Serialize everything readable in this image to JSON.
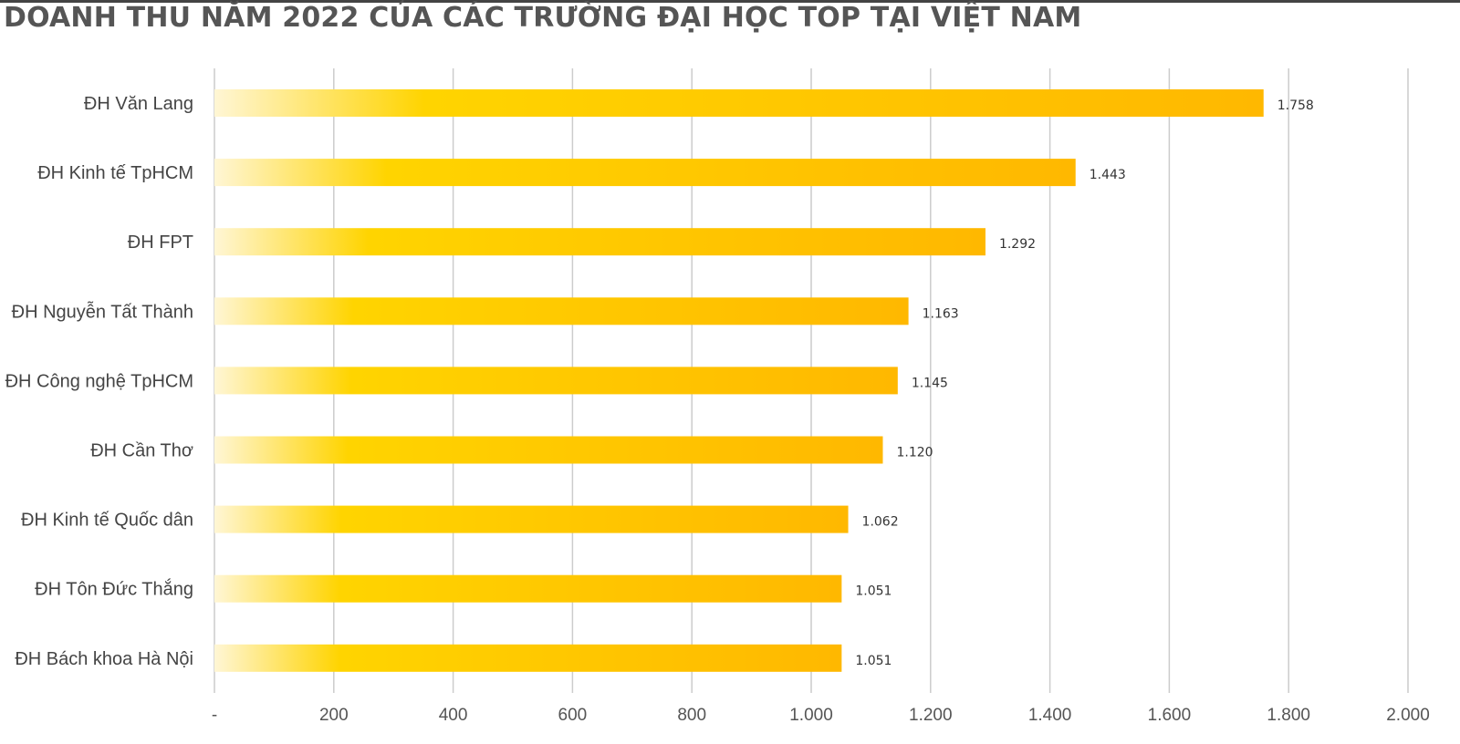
{
  "chart_data": {
    "type": "bar",
    "orientation": "horizontal",
    "title": "DOANH THU NĂM 2022 CỦA CÁC TRƯỜNG ĐẠI HỌC TOP TẠI VIỆT NAM",
    "categories": [
      "ĐH Văn Lang",
      "ĐH Kinh tế TpHCM",
      "ĐH FPT",
      "ĐH Nguyễn Tất Thành",
      "ĐH Công nghệ TpHCM",
      "ĐH Cần Thơ",
      "ĐH Kinh tế Quốc dân",
      "ĐH Tôn Đức Thắng",
      "ĐH Bách khoa Hà Nội"
    ],
    "values": [
      1758,
      1443,
      1292,
      1163,
      1145,
      1120,
      1062,
      1051,
      1051
    ],
    "value_labels": [
      "1.758",
      "1.443",
      "1.292",
      "1.163",
      "1.145",
      "1.120",
      "1.062",
      "1.051",
      "1.051"
    ],
    "xlim": [
      0,
      2000
    ],
    "x_ticks": [
      0,
      200,
      400,
      600,
      800,
      1000,
      1200,
      1400,
      1600,
      1800,
      2000
    ],
    "x_tick_labels": [
      "-",
      "200",
      "400",
      "600",
      "800",
      "1.000",
      "1.200",
      "1.400",
      "1.600",
      "1.800",
      "2.000"
    ],
    "grid": true,
    "legend": "none",
    "colors": {
      "bar_light": "#FFF6D5",
      "bar_main": "#FFD400",
      "bar_dark": "#FFB800",
      "grid": "#CCCCCC"
    }
  }
}
